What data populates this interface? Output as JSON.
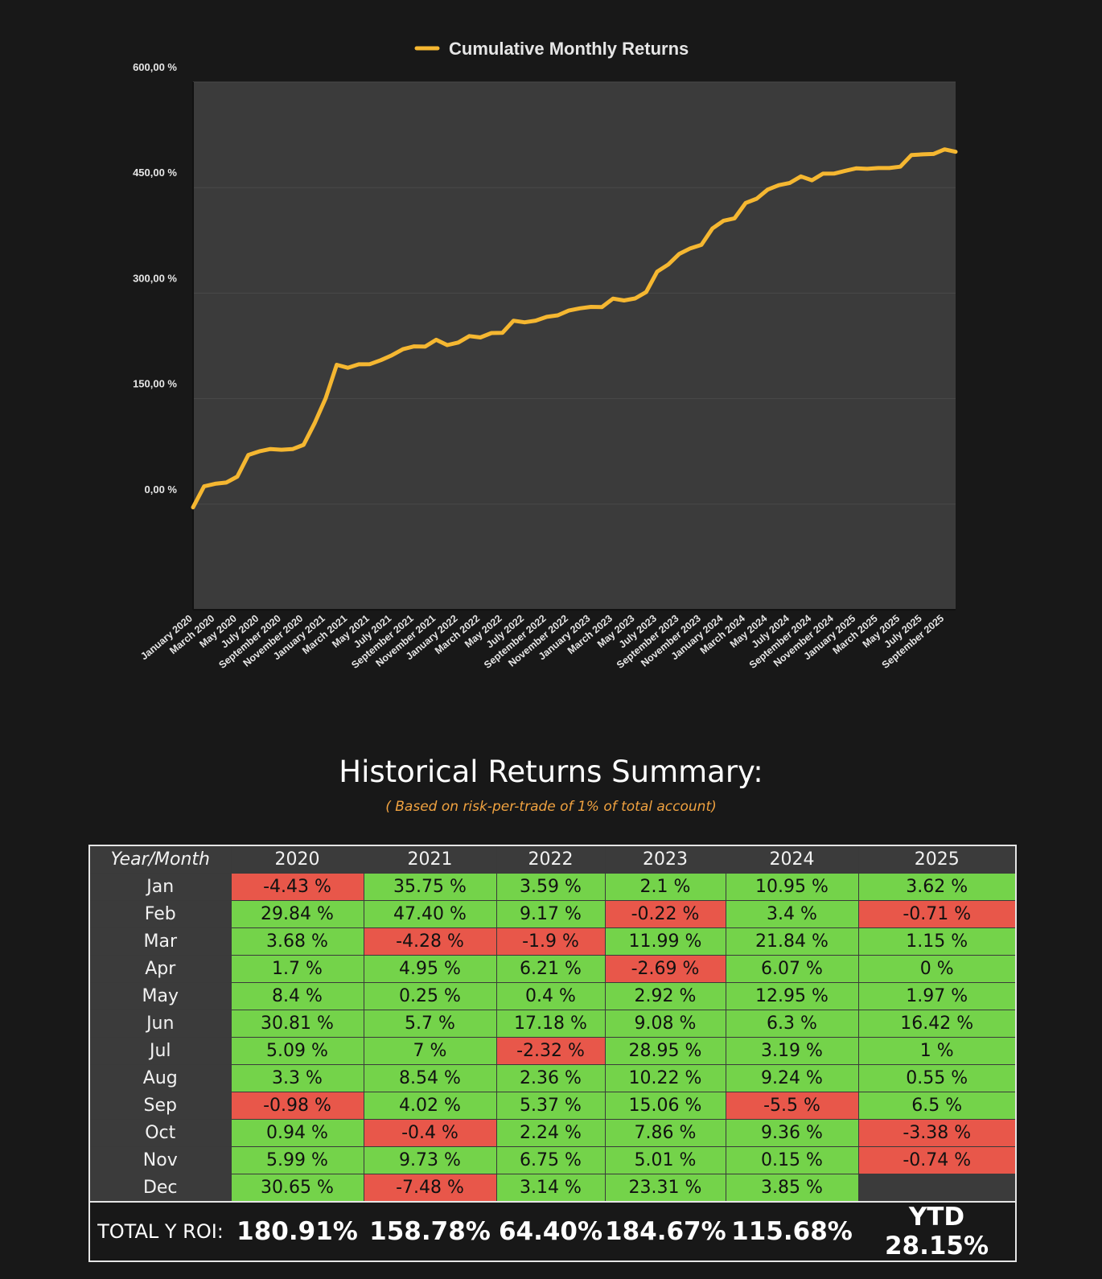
{
  "chart_data": {
    "type": "line",
    "legend": "Cumulative Monthly Returns",
    "line_color": "#f5b731",
    "plot_bg": "#3b3b3b",
    "ylim": [
      -150,
      600
    ],
    "yticks": [
      "600,00 %",
      "450,00 %",
      "300,00 %",
      "150,00 %",
      "0,00 %"
    ],
    "ytick_values": [
      600,
      450,
      300,
      150,
      0
    ],
    "x_labels": [
      "January 2020",
      "March 2020",
      "May 2020",
      "July 2020",
      "September 2020",
      "November 2020",
      "January 2021",
      "March 2021",
      "May 2021",
      "July 2021",
      "September 2021",
      "November 2021",
      "January 2022",
      "March 2022",
      "May 2022",
      "July 2022",
      "September 2022",
      "November 2022",
      "January 2023",
      "March 2023",
      "May 2023",
      "July 2023",
      "September 2023",
      "November 2023",
      "January 2024",
      "March 2024",
      "May 2024",
      "July 2024",
      "September 2024",
      "November 2024",
      "January 2025",
      "March 2025",
      "May 2025",
      "July 2025",
      "September 2025"
    ],
    "values": [
      -4.43,
      25.41,
      29.09,
      30.79,
      39.19,
      70.0,
      75.09,
      78.39,
      77.41,
      78.35,
      84.34,
      114.99,
      150.74,
      198.14,
      193.86,
      198.81,
      199.06,
      204.76,
      211.76,
      220.3,
      224.32,
      223.92,
      233.65,
      226.17,
      229.76,
      238.93,
      237.03,
      243.24,
      243.64,
      260.82,
      258.5,
      260.86,
      266.23,
      268.47,
      275.22,
      278.36,
      280.46,
      280.24,
      292.23,
      289.54,
      292.46,
      301.54,
      330.49,
      340.71,
      355.77,
      363.63,
      368.64,
      391.95,
      402.9,
      406.3,
      428.14,
      434.21,
      447.16,
      453.46,
      456.65,
      465.89,
      460.39,
      469.75,
      469.9,
      473.75,
      477.37,
      476.66,
      477.81,
      477.81,
      479.78,
      496.2,
      497.2,
      497.75,
      504.25,
      500.87
    ]
  },
  "summary": {
    "title": "Historical Returns Summary:",
    "subtitle": "( Based on risk-per-trade of 1% of total account)",
    "corner_label": "Year/Month",
    "years": [
      "2020",
      "2021",
      "2022",
      "2023",
      "2024",
      "2025"
    ],
    "rows": [
      {
        "month": "Jan",
        "values": [
          "-4.43 %",
          "35.75 %",
          "3.59 %",
          "2.1 %",
          "10.95 %",
          "3.62 %"
        ]
      },
      {
        "month": "Feb",
        "values": [
          "29.84 %",
          "47.40 %",
          "9.17 %",
          "-0.22 %",
          "3.4 %",
          "-0.71 %"
        ]
      },
      {
        "month": "Mar",
        "values": [
          "3.68 %",
          "-4.28 %",
          "-1.9 %",
          "11.99 %",
          "21.84 %",
          "1.15 %"
        ]
      },
      {
        "month": "Apr",
        "values": [
          "1.7 %",
          "4.95 %",
          "6.21 %",
          "-2.69 %",
          "6.07 %",
          "0 %"
        ]
      },
      {
        "month": "May",
        "values": [
          "8.4 %",
          "0.25 %",
          "0.4 %",
          "2.92 %",
          "12.95 %",
          "1.97 %"
        ]
      },
      {
        "month": "Jun",
        "values": [
          "30.81 %",
          "5.7 %",
          "17.18 %",
          "9.08 %",
          "6.3 %",
          "16.42 %"
        ]
      },
      {
        "month": "Jul",
        "values": [
          "5.09 %",
          "7 %",
          "-2.32 %",
          "28.95 %",
          "3.19 %",
          "1 %"
        ]
      },
      {
        "month": "Aug",
        "values": [
          "3.3 %",
          "8.54 %",
          "2.36 %",
          "10.22 %",
          "9.24 %",
          "0.55 %"
        ]
      },
      {
        "month": "Sep",
        "values": [
          "-0.98 %",
          "4.02 %",
          "5.37 %",
          "15.06 %",
          "-5.5 %",
          "6.5 %"
        ]
      },
      {
        "month": "Oct",
        "values": [
          "0.94 %",
          "-0.4 %",
          "2.24 %",
          "7.86 %",
          "9.36 %",
          "-3.38 %"
        ]
      },
      {
        "month": "Nov",
        "values": [
          "5.99 %",
          "9.73 %",
          "6.75 %",
          "5.01 %",
          "0.15 %",
          "-0.74 %"
        ]
      },
      {
        "month": "Dec",
        "values": [
          "30.65 %",
          "-7.48 %",
          "3.14 %",
          "23.31 %",
          "3.85 %",
          ""
        ]
      }
    ],
    "total_label": "TOTAL Y ROI:",
    "totals": [
      "180.91%",
      "158.78%",
      "64.40%",
      "184.67%",
      "115.68%",
      "YTD 28.15%"
    ]
  }
}
